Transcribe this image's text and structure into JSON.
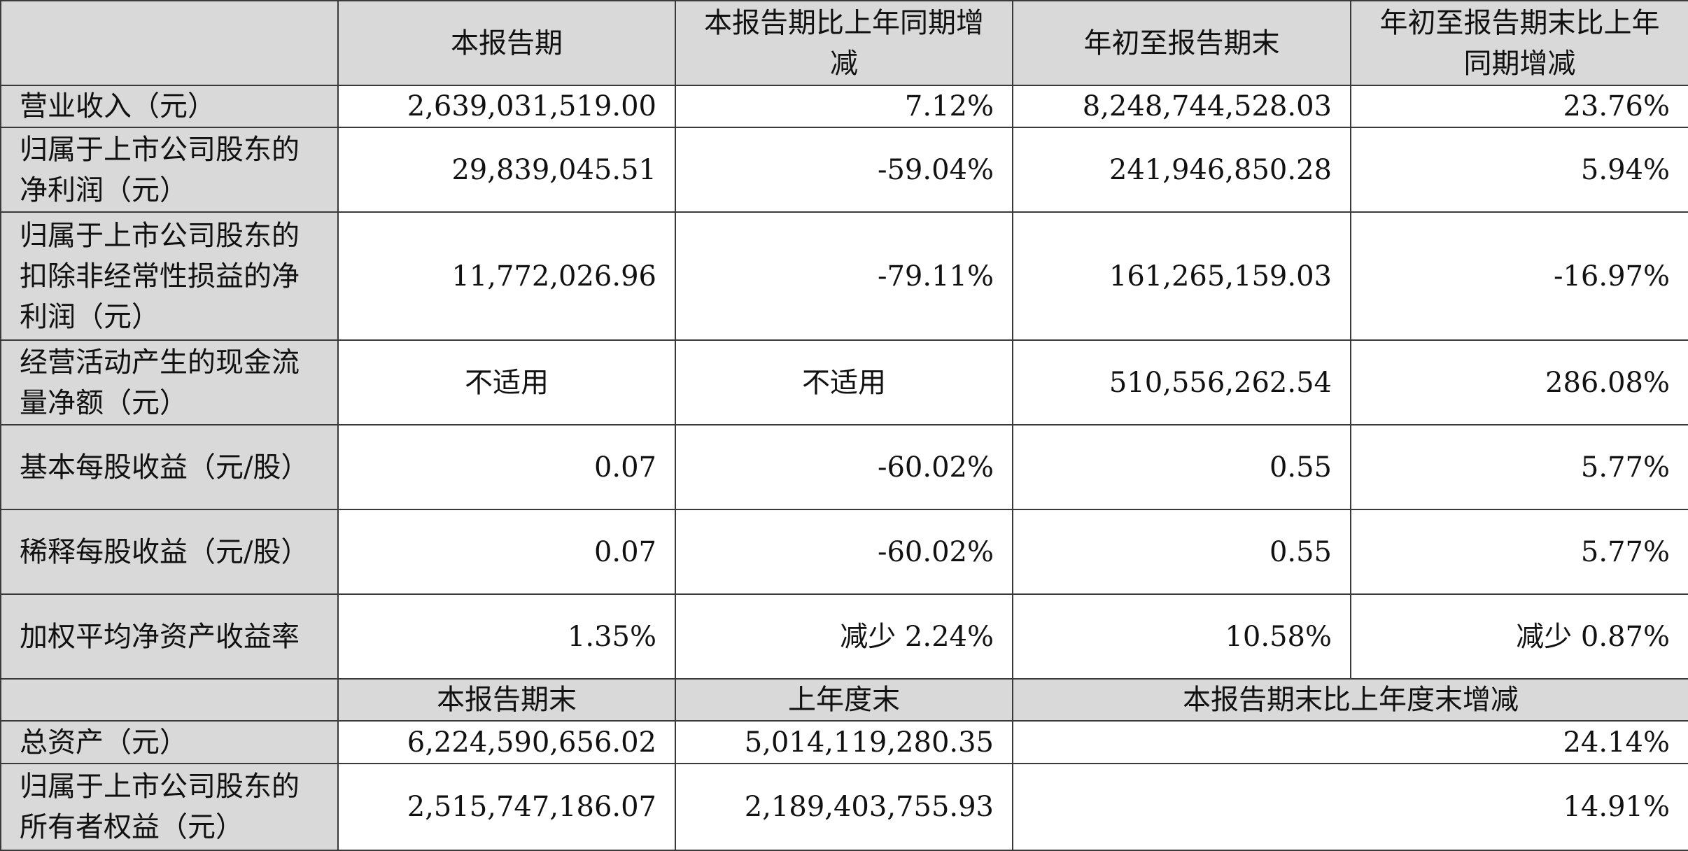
{
  "top_headers": [
    "本报告期",
    "本报告期比上年同期增减",
    "年初至报告期末",
    "年初至报告期末比上年同期增减"
  ],
  "rows": [
    {
      "label": "营业收入（元）",
      "values": [
        "2,639,031,519.00",
        "7.12%",
        "8,248,744,528.03",
        "23.76%"
      ]
    },
    {
      "label": "归属于上市公司股东的净利润（元）",
      "values": [
        "29,839,045.51",
        "-59.04%",
        "241,946,850.28",
        "5.94%"
      ]
    },
    {
      "label": "归属于上市公司股东的扣除非经常性损益的净利润（元）",
      "values": [
        "11,772,026.96",
        "-79.11%",
        "161,265,159.03",
        "-16.97%"
      ]
    },
    {
      "label": "经营活动产生的现金流量净额（元）",
      "values": [
        "不适用",
        "不适用",
        "510,556,262.54",
        "286.08%"
      ]
    },
    {
      "label": "基本每股收益（元/股）",
      "values": [
        "0.07",
        "-60.02%",
        "0.55",
        "5.77%"
      ]
    },
    {
      "label": "稀释每股收益（元/股）",
      "values": [
        "0.07",
        "-60.02%",
        "0.55",
        "5.77%"
      ]
    },
    {
      "label": "加权平均净资产收益率",
      "values": [
        "1.35%",
        "减少 2.24%",
        "10.58%",
        "减少 0.87%"
      ]
    }
  ],
  "bottom_headers": [
    "本报告期末",
    "上年度末",
    "本报告期末比上年度末增减"
  ],
  "bottom_rows": [
    {
      "label": "总资产（元）",
      "values": [
        "6,224,590,656.02",
        "5,014,119,280.35",
        "24.14%"
      ]
    },
    {
      "label": "归属于上市公司股东的所有者权益（元）",
      "values": [
        "2,515,747,186.07",
        "2,189,403,755.93",
        "14.91%"
      ]
    }
  ]
}
